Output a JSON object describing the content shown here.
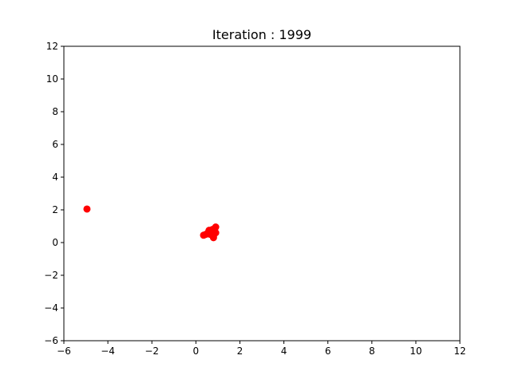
{
  "chart_data": {
    "type": "scatter",
    "title": "Iteration : 1999",
    "xlabel": "",
    "ylabel": "",
    "xlim": [
      -6,
      12
    ],
    "ylim": [
      -6,
      12
    ],
    "x_ticks": [
      -6,
      -4,
      -2,
      0,
      2,
      4,
      6,
      8,
      10,
      12
    ],
    "y_ticks": [
      -6,
      -4,
      -2,
      0,
      2,
      4,
      6,
      8,
      10,
      12
    ],
    "x_tick_labels": [
      "−6",
      "−4",
      "−2",
      "0",
      "2",
      "4",
      "6",
      "8",
      "10",
      "12"
    ],
    "y_tick_labels": [
      "−6",
      "−4",
      "−2",
      "0",
      "2",
      "4",
      "6",
      "8",
      "10",
      "12"
    ],
    "grid": false,
    "legend": "none",
    "marker_color": "#ff0000",
    "series": [
      {
        "points": [
          {
            "x": -4.95,
            "y": 2.05
          },
          {
            "x": 0.35,
            "y": 0.45
          },
          {
            "x": 0.45,
            "y": 0.5
          },
          {
            "x": 0.55,
            "y": 0.6
          },
          {
            "x": 0.6,
            "y": 0.75
          },
          {
            "x": 0.65,
            "y": 0.5
          },
          {
            "x": 0.7,
            "y": 0.65
          },
          {
            "x": 0.75,
            "y": 0.45
          },
          {
            "x": 0.8,
            "y": 0.7
          },
          {
            "x": 0.8,
            "y": 0.4
          },
          {
            "x": 0.85,
            "y": 0.85
          },
          {
            "x": 0.85,
            "y": 0.55
          },
          {
            "x": 0.9,
            "y": 0.95
          },
          {
            "x": 0.9,
            "y": 0.6
          },
          {
            "x": 0.75,
            "y": 0.8
          },
          {
            "x": 0.8,
            "y": 0.3
          }
        ]
      }
    ]
  }
}
